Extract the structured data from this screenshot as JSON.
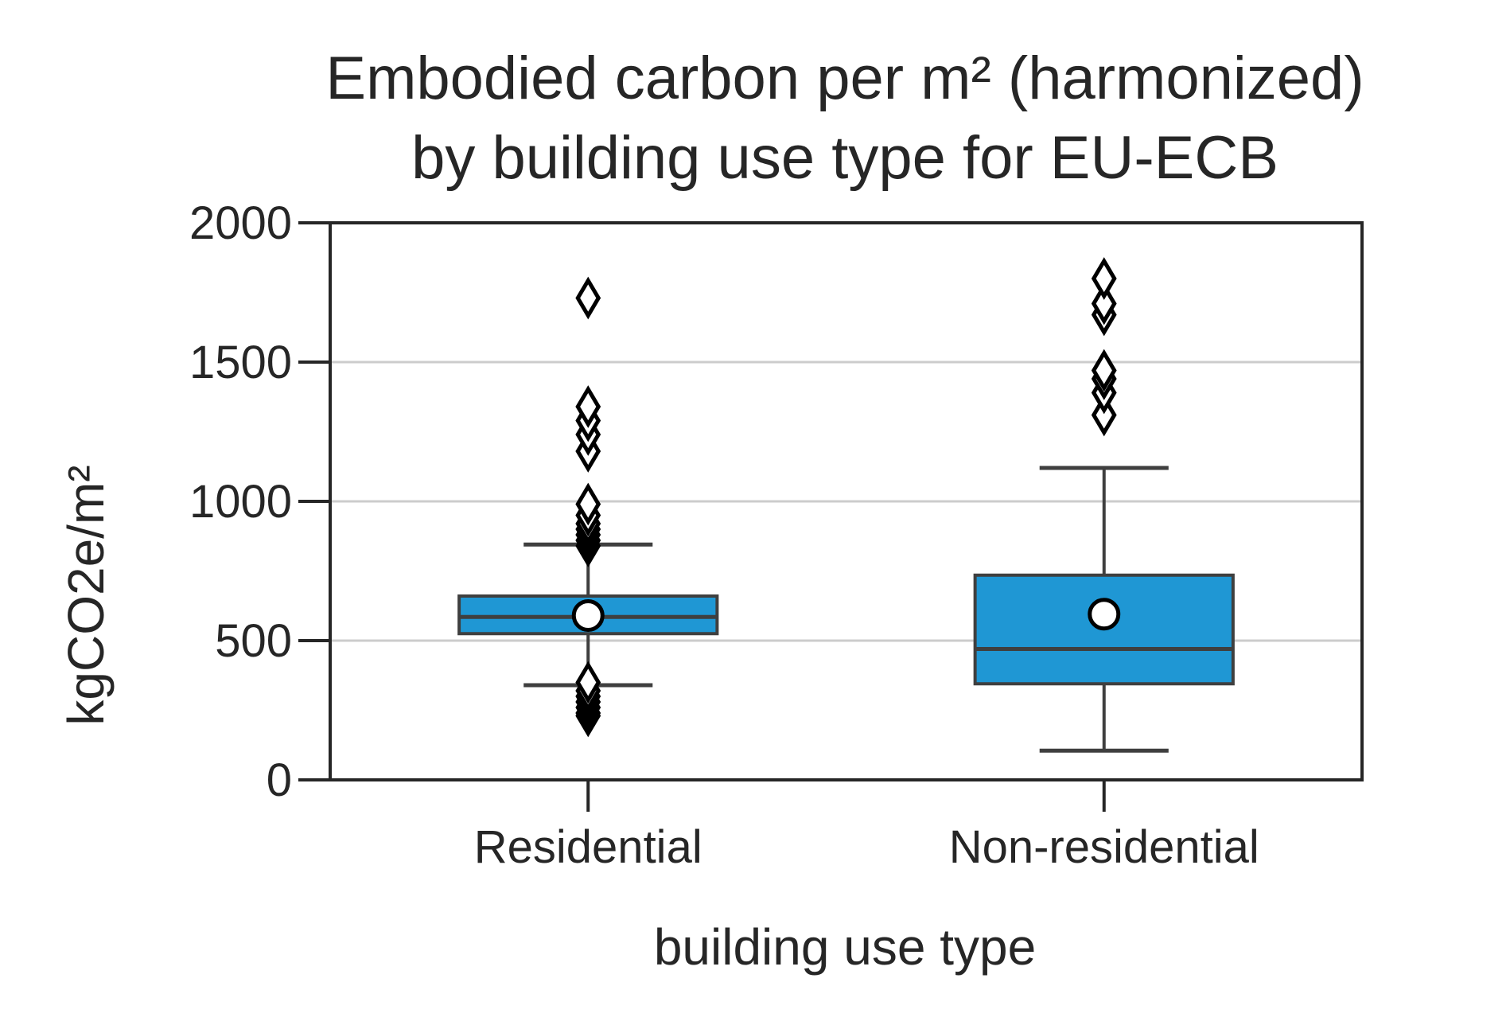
{
  "chart_data": {
    "type": "box",
    "title_lines": [
      "Embodied carbon per m² (harmonized)",
      "by building use type for EU-ECB"
    ],
    "xlabel": "building use type",
    "ylabel": "kgCO2e/m²",
    "ylim": [
      0,
      2000
    ],
    "yticks": [
      0,
      500,
      1000,
      1500,
      2000
    ],
    "ytick_labels": [
      "0",
      "500",
      "1000",
      "1500",
      "2000"
    ],
    "categories": [
      "Residential",
      "Non-residential"
    ],
    "grid": "horizontal",
    "box_color": "#1f97d4",
    "boxes": [
      {
        "category": "Residential",
        "whisker_low": 340,
        "q1": 525,
        "median": 585,
        "q3": 660,
        "whisker_high": 845,
        "mean": 590,
        "outliers": [
          230,
          240,
          260,
          280,
          300,
          320,
          350,
          840,
          860,
          880,
          900,
          920,
          950,
          990,
          1180,
          1240,
          1290,
          1340,
          1730
        ]
      },
      {
        "category": "Non-residential",
        "whisker_low": 105,
        "q1": 345,
        "median": 470,
        "q3": 735,
        "whisker_high": 1120,
        "mean": 595,
        "outliers": [
          1310,
          1390,
          1440,
          1470,
          1670,
          1710,
          1800
        ]
      }
    ]
  }
}
